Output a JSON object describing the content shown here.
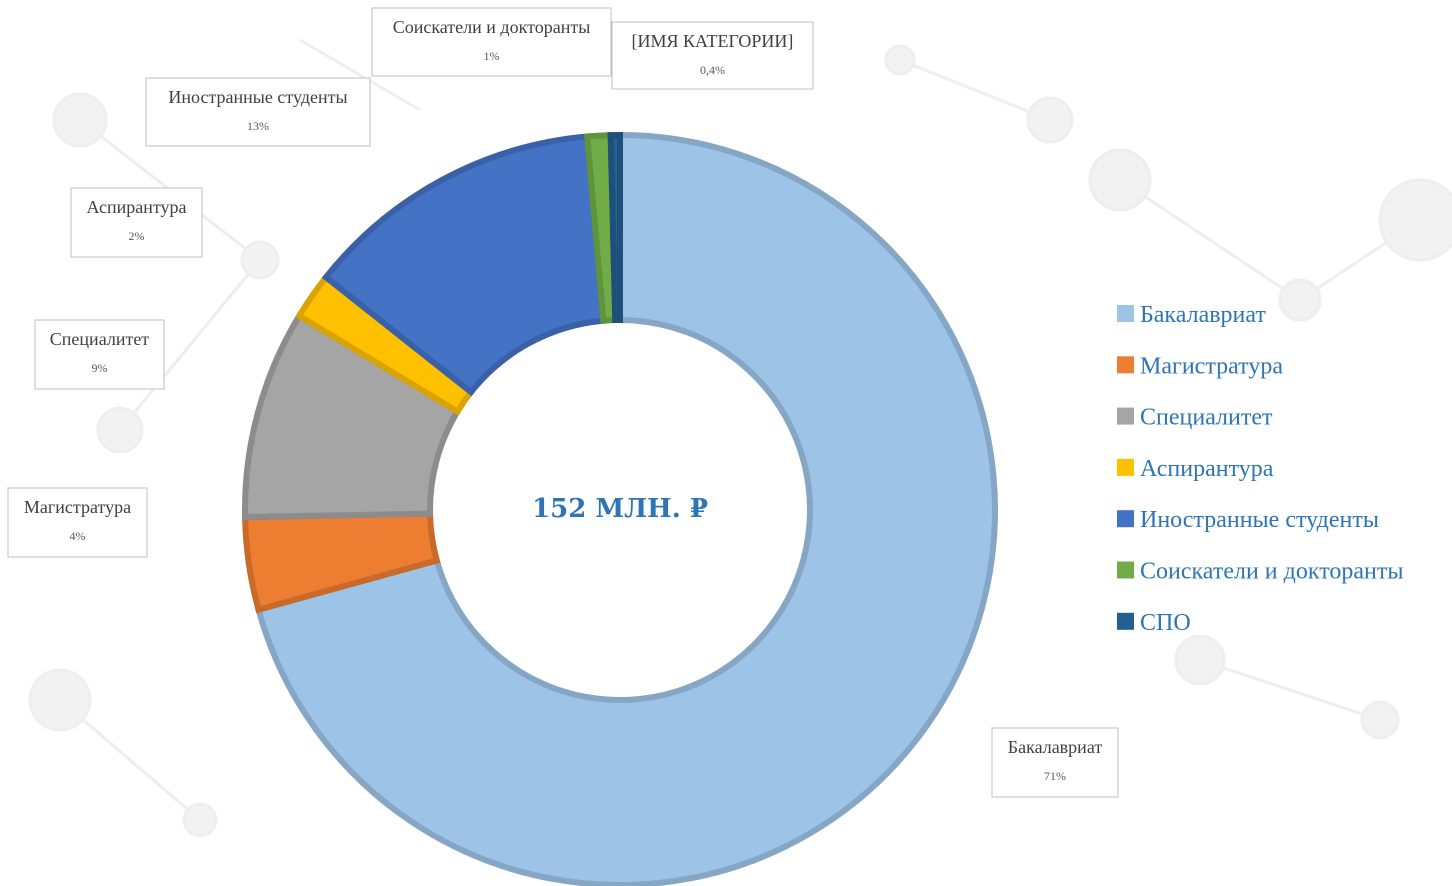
{
  "chart_data": {
    "type": "donut",
    "center_label": "152 МЛН. ₽",
    "categories": [
      "Бакалавриат",
      "Магистратура",
      "Специалитет",
      "Аспирантура",
      "Иностранные студенты",
      "Соискатели и докторанты",
      "СПО"
    ],
    "data_label_categories": [
      "Бакалавриат",
      "Магистратура",
      "Специалитет",
      "Аспирантура",
      "Иностранные студенты",
      "Соискатели и докторанты",
      "[ИМЯ КАТЕГОРИИ]"
    ],
    "values": [
      71,
      4,
      9,
      2,
      13,
      1,
      0.4
    ],
    "value_labels": [
      "71%",
      "4%",
      "9%",
      "2%",
      "13%",
      "1%",
      "0,4%"
    ],
    "colors": [
      "#9dc3e6",
      "#ed7d31",
      "#a5a5a5",
      "#ffc000",
      "#4472c4",
      "#70ad47",
      "#255e91"
    ],
    "legend": "right"
  }
}
